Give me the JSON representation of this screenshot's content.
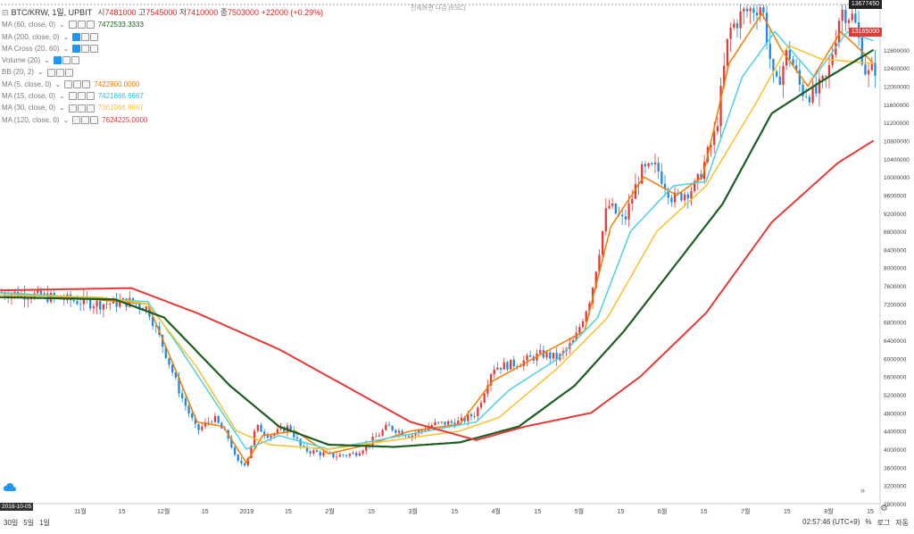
{
  "header": {
    "symbol": "BTC/KRW, 1일, UPBIT",
    "o_label": "시",
    "o_val": "7481000",
    "h_label": "고",
    "h_val": "7545000",
    "l_label": "저",
    "l_val": "7410000",
    "c_label": "종",
    "c_val": "7503000",
    "change": "+22000 (+0.29%)",
    "top_note": "전체화면 나감 (ESC)"
  },
  "legend": [
    {
      "name": "MA (60, close, 0)",
      "value": "7472533.3333",
      "color": "#1b5e20",
      "btn_blue": false
    },
    {
      "name": "MA (200, close, 0)",
      "value": "",
      "color": "#9e9e9e",
      "btn_blue": true
    },
    {
      "name": "MA Cross (20, 60)",
      "value": "",
      "color": "#9e9e9e",
      "btn_blue": true
    },
    {
      "name": "Volume (20)",
      "value": "",
      "color": "#9e9e9e",
      "btn_blue": true
    },
    {
      "name": "BB (20, 2)",
      "value": "",
      "color": "#9e9e9e",
      "btn_blue": false
    },
    {
      "name": "MA (5, close, 0)",
      "value": "7422800.0000",
      "color": "#f57c00",
      "btn_blue": false
    },
    {
      "name": "MA (15, close, 0)",
      "value": "7421866.6667",
      "color": "#26c6da",
      "btn_blue": false
    },
    {
      "name": "MA (30, close, 0)",
      "value": "7361066.6667",
      "color": "#fbc02d",
      "btn_blue": false
    },
    {
      "name": "MA (120, close, 0)",
      "value": "7624225.0000",
      "color": "#e53935",
      "btn_blue": false
    }
  ],
  "price_tags": {
    "high": "13677450",
    "last": "13165000"
  },
  "date_tag": "2018-10-05",
  "bottom": {
    "left": [
      "30일",
      "5일",
      "1일"
    ],
    "time": "02:57:46 (UTC+9)",
    "pct": "%",
    "log": "로그",
    "auto": "자동"
  },
  "colors": {
    "up": "#e53935",
    "down": "#1e88e5",
    "ma5": "#f57c00",
    "ma15": "#4dd0e1",
    "ma30": "#fbc02d",
    "ma60": "#1b5e20",
    "ma120": "#e53935"
  },
  "chart_data": {
    "type": "line",
    "title": "",
    "xlabel": "",
    "ylabel": "",
    "ylim": [
      2800000,
      13800000
    ],
    "y_ticks": [
      2800000,
      3200000,
      3600000,
      4000000,
      4400000,
      4800000,
      5200000,
      5600000,
      6000000,
      6400000,
      6800000,
      7200000,
      7600000,
      8000000,
      8400000,
      8800000,
      9200000,
      9600000,
      10000000,
      10400000,
      10800000,
      11200000,
      11600000,
      12000000,
      12400000,
      12800000
    ],
    "x_ticks": [
      "11월",
      "15",
      "12월",
      "15",
      "2019",
      "15",
      "2월",
      "15",
      "3월",
      "15",
      "4월",
      "15",
      "5월",
      "15",
      "6월",
      "15",
      "7월",
      "15",
      "8월",
      "15"
    ],
    "price": [
      [
        0,
        7450000
      ],
      [
        10,
        7400000
      ],
      [
        20,
        7300000
      ],
      [
        30,
        7200000
      ],
      [
        40,
        7250000
      ],
      [
        45,
        7100000
      ],
      [
        50,
        6200000
      ],
      [
        55,
        5200000
      ],
      [
        60,
        4400000
      ],
      [
        65,
        4700000
      ],
      [
        70,
        4200000
      ],
      [
        72,
        3700000
      ],
      [
        75,
        3700000
      ],
      [
        78,
        4500000
      ],
      [
        82,
        4300000
      ],
      [
        88,
        4500000
      ],
      [
        92,
        4000000
      ],
      [
        98,
        3900000
      ],
      [
        102,
        3850000
      ],
      [
        108,
        3900000
      ],
      [
        112,
        4100000
      ],
      [
        118,
        4500000
      ],
      [
        125,
        4300000
      ],
      [
        132,
        4550000
      ],
      [
        140,
        4600000
      ],
      [
        145,
        4800000
      ],
      [
        150,
        5800000
      ],
      [
        158,
        5900000
      ],
      [
        165,
        6100000
      ],
      [
        170,
        6000000
      ],
      [
        175,
        6400000
      ],
      [
        180,
        7400000
      ],
      [
        185,
        9400000
      ],
      [
        190,
        9000000
      ],
      [
        195,
        10100000
      ],
      [
        200,
        10200000
      ],
      [
        205,
        9500000
      ],
      [
        212,
        9800000
      ],
      [
        218,
        11000000
      ],
      [
        222,
        13200000
      ],
      [
        226,
        13600000
      ],
      [
        232,
        13800000
      ],
      [
        236,
        11900000
      ],
      [
        240,
        12800000
      ],
      [
        244,
        11900000
      ],
      [
        248,
        11800000
      ],
      [
        252,
        12200000
      ],
      [
        256,
        13700000
      ],
      [
        260,
        13500000
      ],
      [
        264,
        12200000
      ],
      [
        266,
        12400000
      ]
    ],
    "series": [
      {
        "name": "MA (5, close, 0)",
        "values": [
          [
            0,
            7450000
          ],
          [
            20,
            7350000
          ],
          [
            45,
            7200000
          ],
          [
            52,
            6000000
          ],
          [
            60,
            4600000
          ],
          [
            68,
            4500000
          ],
          [
            75,
            3700000
          ],
          [
            80,
            4300000
          ],
          [
            90,
            4400000
          ],
          [
            100,
            3900000
          ],
          [
            112,
            4100000
          ],
          [
            125,
            4400000
          ],
          [
            140,
            4550000
          ],
          [
            150,
            5500000
          ],
          [
            165,
            6100000
          ],
          [
            178,
            6600000
          ],
          [
            186,
            8900000
          ],
          [
            196,
            10000000
          ],
          [
            206,
            9600000
          ],
          [
            214,
            10000000
          ],
          [
            222,
            12500000
          ],
          [
            232,
            13600000
          ],
          [
            238,
            12800000
          ],
          [
            246,
            12000000
          ],
          [
            256,
            13200000
          ],
          [
            262,
            12800000
          ],
          [
            266,
            12500000
          ]
        ]
      },
      {
        "name": "MA (15, close, 0)",
        "values": [
          [
            0,
            7450000
          ],
          [
            25,
            7350000
          ],
          [
            45,
            7250000
          ],
          [
            55,
            6200000
          ],
          [
            65,
            5100000
          ],
          [
            75,
            4000000
          ],
          [
            85,
            4300000
          ],
          [
            100,
            4000000
          ],
          [
            115,
            4200000
          ],
          [
            130,
            4400000
          ],
          [
            145,
            4600000
          ],
          [
            155,
            5300000
          ],
          [
            170,
            6000000
          ],
          [
            182,
            6900000
          ],
          [
            192,
            8800000
          ],
          [
            205,
            9800000
          ],
          [
            215,
            9900000
          ],
          [
            226,
            12200000
          ],
          [
            236,
            13200000
          ],
          [
            248,
            12200000
          ],
          [
            258,
            13200000
          ],
          [
            266,
            13000000
          ]
        ]
      },
      {
        "name": "MA (30, close, 0)",
        "values": [
          [
            0,
            7400000
          ],
          [
            30,
            7350000
          ],
          [
            45,
            7200000
          ],
          [
            60,
            5800000
          ],
          [
            72,
            4400000
          ],
          [
            82,
            4100000
          ],
          [
            100,
            4000000
          ],
          [
            120,
            4200000
          ],
          [
            140,
            4400000
          ],
          [
            152,
            4700000
          ],
          [
            170,
            5800000
          ],
          [
            185,
            6900000
          ],
          [
            200,
            8800000
          ],
          [
            215,
            9800000
          ],
          [
            230,
            11600000
          ],
          [
            240,
            12900000
          ],
          [
            250,
            12600000
          ],
          [
            266,
            12500000
          ]
        ]
      },
      {
        "name": "MA (60, close, 0)",
        "values": [
          [
            0,
            7350000
          ],
          [
            35,
            7300000
          ],
          [
            50,
            6900000
          ],
          [
            70,
            5400000
          ],
          [
            85,
            4500000
          ],
          [
            100,
            4100000
          ],
          [
            120,
            4050000
          ],
          [
            140,
            4150000
          ],
          [
            158,
            4500000
          ],
          [
            175,
            5400000
          ],
          [
            190,
            6600000
          ],
          [
            205,
            8000000
          ],
          [
            220,
            9400000
          ],
          [
            235,
            11400000
          ],
          [
            250,
            12100000
          ],
          [
            266,
            12800000
          ]
        ]
      },
      {
        "name": "MA (120, close, 0)",
        "values": [
          [
            0,
            7500000
          ],
          [
            40,
            7550000
          ],
          [
            60,
            7000000
          ],
          [
            85,
            6200000
          ],
          [
            105,
            5400000
          ],
          [
            125,
            4600000
          ],
          [
            145,
            4200000
          ],
          [
            160,
            4500000
          ],
          [
            180,
            4800000
          ],
          [
            195,
            5600000
          ],
          [
            215,
            7000000
          ],
          [
            235,
            9000000
          ],
          [
            255,
            10300000
          ],
          [
            266,
            10800000
          ]
        ]
      }
    ]
  }
}
